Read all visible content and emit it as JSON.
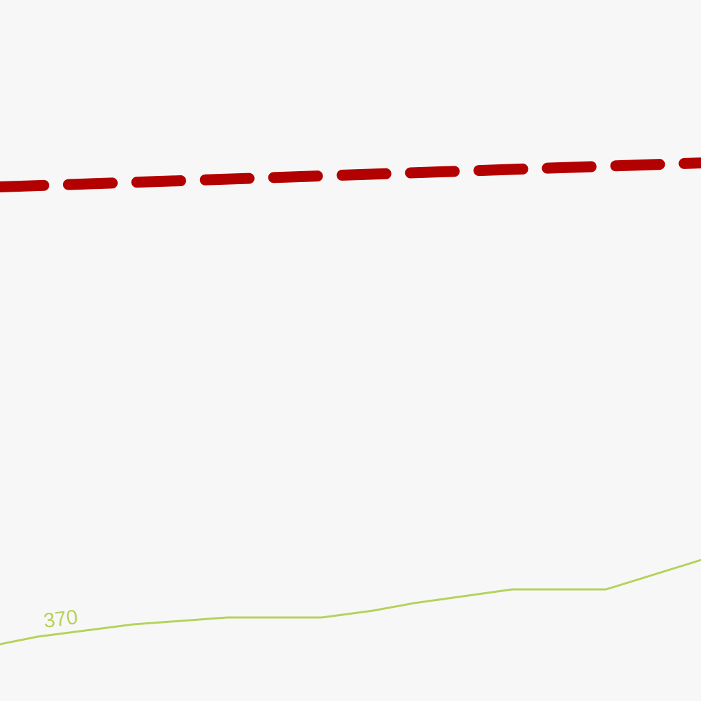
{
  "map": {
    "background_color": "#f7f7f7",
    "boundary_line": {
      "kind": "dashed boundary",
      "color": "#b30000"
    },
    "contour_line": {
      "kind": "elevation contour",
      "color": "#b5d25a",
      "label": "370"
    }
  }
}
